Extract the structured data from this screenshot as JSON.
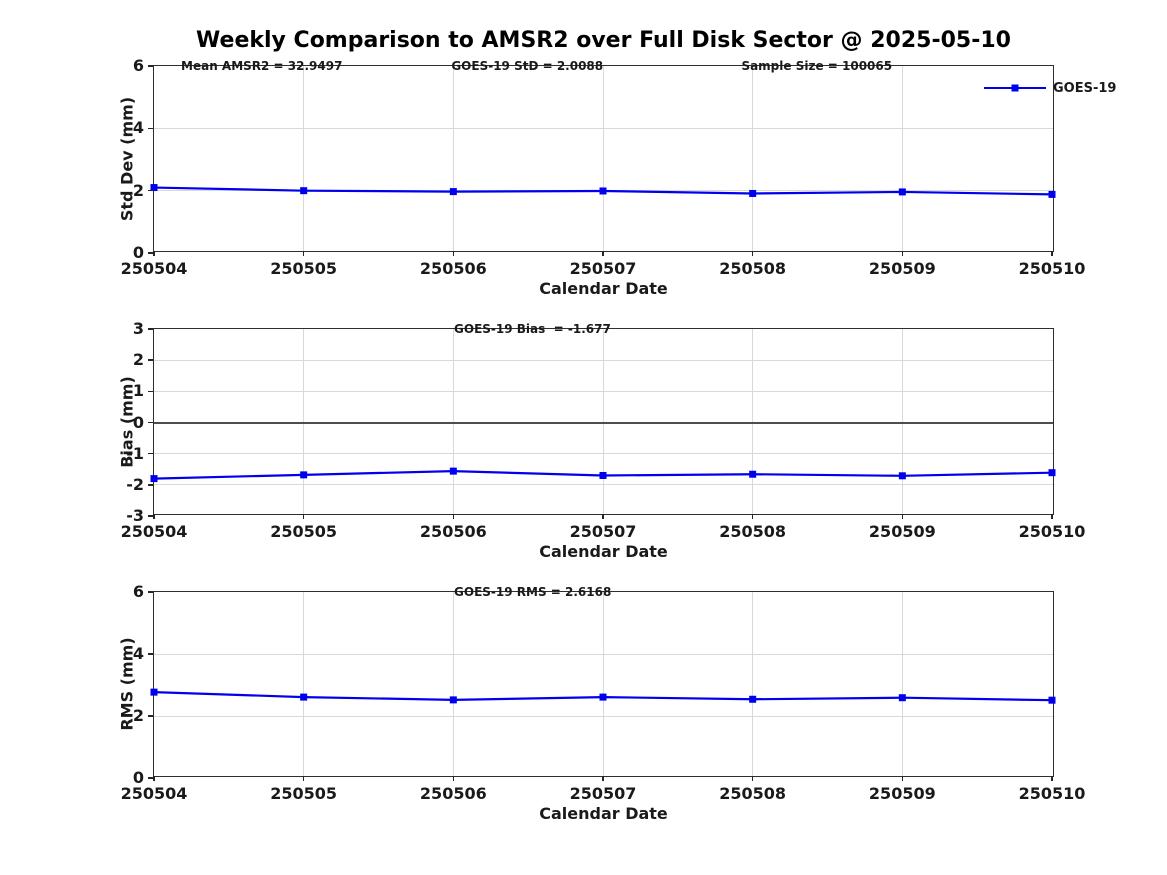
{
  "title": "Weekly Comparison to AMSR2 over Full Disk Sector @ 2025-05-10",
  "colors": {
    "series": "#0000EE",
    "grid": "#d9d9d9",
    "axis": "#2e2e2e",
    "zero_line": "#4d4d4d",
    "text": "#1a1a1a"
  },
  "legend": {
    "label": "GOES-19",
    "marker": "square",
    "position": "top-right"
  },
  "x_axis_label": "Calendar Date",
  "chart_data": [
    {
      "type": "line",
      "ylabel": "Std Dev (mm)",
      "xlabel": "Calendar Date",
      "categories": [
        "250504",
        "250505",
        "250506",
        "250507",
        "250508",
        "250509",
        "250510"
      ],
      "series": [
        {
          "name": "GOES-19",
          "values": [
            2.1,
            2.0,
            1.97,
            1.99,
            1.91,
            1.96,
            1.88
          ]
        }
      ],
      "ylim": [
        0,
        6
      ],
      "yticks": [
        0,
        2,
        4,
        6
      ],
      "grid": true,
      "zero_line": false,
      "show_legend": true,
      "annotations": [
        {
          "text": "Mean AMSR2 = 32.9497",
          "xfrac": 0.03
        },
        {
          "text": "GOES-19 StD = 2.0088",
          "xfrac": 0.33
        },
        {
          "text": "Sample Size = 100065",
          "xfrac": 0.652
        }
      ]
    },
    {
      "type": "line",
      "ylabel": "Bias (mm)",
      "xlabel": "Calendar Date",
      "categories": [
        "250504",
        "250505",
        "250506",
        "250507",
        "250508",
        "250509",
        "250510"
      ],
      "series": [
        {
          "name": "GOES-19",
          "values": [
            -1.8,
            -1.68,
            -1.56,
            -1.7,
            -1.66,
            -1.71,
            -1.61
          ]
        }
      ],
      "ylim": [
        -3,
        3
      ],
      "yticks": [
        -3,
        -2,
        -1,
        0,
        1,
        2,
        3
      ],
      "grid": true,
      "zero_line": true,
      "show_legend": false,
      "annotations": [
        {
          "text": "GOES-19 Bias  = -1.677",
          "xfrac": 0.333
        }
      ]
    },
    {
      "type": "line",
      "ylabel": "RMS (mm)",
      "xlabel": "Calendar Date",
      "categories": [
        "250504",
        "250505",
        "250506",
        "250507",
        "250508",
        "250509",
        "250510"
      ],
      "series": [
        {
          "name": "GOES-19",
          "values": [
            2.77,
            2.61,
            2.52,
            2.61,
            2.54,
            2.59,
            2.51
          ]
        }
      ],
      "ylim": [
        0,
        6
      ],
      "yticks": [
        0,
        2,
        4,
        6
      ],
      "grid": true,
      "zero_line": false,
      "show_legend": false,
      "annotations": [
        {
          "text": "GOES-19 RMS = 2.6168",
          "xfrac": 0.333
        }
      ]
    }
  ]
}
